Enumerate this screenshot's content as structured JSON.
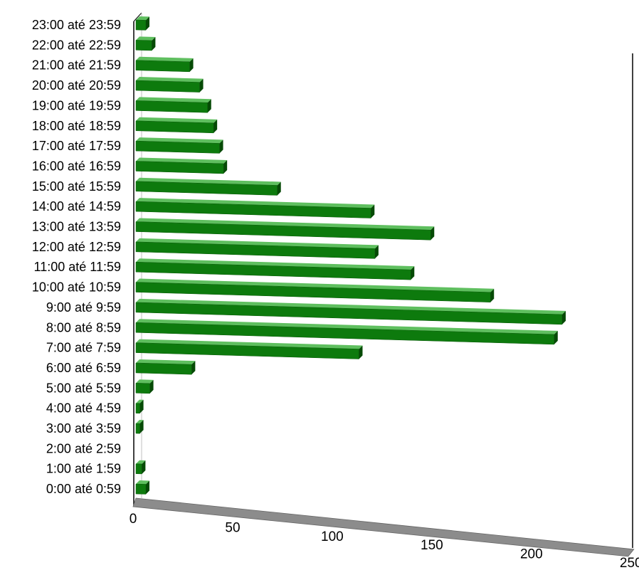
{
  "chart_data": {
    "type": "bar",
    "orientation": "horizontal",
    "style": "3d-perspective",
    "categories": [
      "0:00 até 0:59",
      "1:00 até 1:59",
      "2:00 até 2:59",
      "3:00 até 3:59",
      "4:00 até 4:59",
      "5:00 até 5:59",
      "6:00 até 6:59",
      "7:00 até 7:59",
      "8:00 até 8:59",
      "9:00 até 9:59",
      "10:00 até 10:59",
      "11:00 até 11:59",
      "12:00 até 12:59",
      "13:00 até 13:59",
      "14:00 até 14:59",
      "15:00 até 15:59",
      "16:00 até 16:59",
      "17:00 até 17:59",
      "18:00 até 18:59",
      "19:00 até 19:59",
      "20:00 até 20:59",
      "21:00 até 21:59",
      "22:00 até 22:59",
      "23:00 até 23:59"
    ],
    "values": [
      5,
      3,
      0,
      2,
      2,
      7,
      28,
      112,
      210,
      214,
      178,
      138,
      120,
      148,
      118,
      71,
      44,
      42,
      39,
      36,
      32,
      27,
      8,
      5
    ],
    "xlim": [
      0,
      250
    ],
    "xticks": [
      "0",
      "50",
      "100",
      "150",
      "200",
      "250"
    ],
    "title": "",
    "xlabel": "",
    "ylabel": "",
    "legend": false,
    "colors": {
      "bar_front": "#0d7a0d",
      "bar_top": "#5fbf5f",
      "bar_side": "#064a06",
      "floor": "#8c8c8c",
      "wall_line": "#000000"
    }
  }
}
